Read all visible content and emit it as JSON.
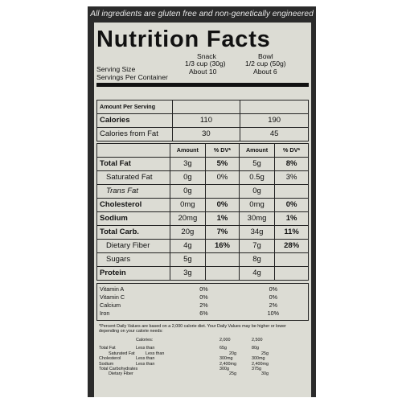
{
  "banner": "All ingredients are gluten free and non-genetically engineered",
  "title": "Nutrition Facts",
  "serving": {
    "snack_label": "Snack",
    "bowl_label": "Bowl",
    "size_label": "Serving Size",
    "per_label": "Servings Per Container",
    "snack_size": "1/3 cup (30g)",
    "bowl_size": "1/2 cup (50g)",
    "snack_per": "About 10",
    "bowl_per": "About 6"
  },
  "amount_per_serving": "Amount Per Serving",
  "calories": {
    "label": "Calories",
    "snack": "110",
    "bowl": "190"
  },
  "calories_fat": {
    "label": "Calories from Fat",
    "snack": "30",
    "bowl": "45"
  },
  "col_headers": {
    "amount": "Amount",
    "dv": "% DV*",
    "amount2": "Amount",
    "dv2": "% DV*"
  },
  "nutrients": [
    {
      "label": "Total Fat",
      "a1": "3g",
      "d1": "5%",
      "a2": "5g",
      "d2": "8%"
    },
    {
      "label": "Saturated Fat",
      "a1": "0g",
      "d1": "0%",
      "a2": "0.5g",
      "d2": "3%"
    },
    {
      "label": "Trans Fat",
      "a1": "0g",
      "d1": "",
      "a2": "0g",
      "d2": ""
    },
    {
      "label": "Cholesterol",
      "a1": "0mg",
      "d1": "0%",
      "a2": "0mg",
      "d2": "0%"
    },
    {
      "label": "Sodium",
      "a1": "20mg",
      "d1": "1%",
      "a2": "30mg",
      "d2": "1%"
    },
    {
      "label": "Total Carb.",
      "a1": "20g",
      "d1": "7%",
      "a2": "34g",
      "d2": "11%"
    },
    {
      "label": "Dietary Fiber",
      "a1": "4g",
      "d1": "16%",
      "a2": "7g",
      "d2": "28%"
    },
    {
      "label": "Sugars",
      "a1": "5g",
      "d1": "",
      "a2": "8g",
      "d2": ""
    },
    {
      "label": "Protein",
      "a1": "3g",
      "d1": "",
      "a2": "4g",
      "d2": ""
    }
  ],
  "vitamins": [
    {
      "label": "Vitamin A",
      "s": "0%",
      "b": "0%"
    },
    {
      "label": "Vitamin C",
      "s": "0%",
      "b": "0%"
    },
    {
      "label": "Calcium",
      "s": "2%",
      "b": "2%"
    },
    {
      "label": "Iron",
      "s": "6%",
      "b": "10%"
    }
  ],
  "footnote": "*Percent Daily Values are based on a 2,000 calorie diet. Your Daily Values may be higher or lower depending on your calorie needs:",
  "dv_table": {
    "header": {
      "calories": "Calories:",
      "c2000": "2,000",
      "c2500": "2,500"
    },
    "rows": [
      {
        "label": "Total Fat",
        "lt": "Less than",
        "v1": "65g",
        "v2": "80g"
      },
      {
        "label": "Saturated Fat",
        "lt": "Less than",
        "v1": "20g",
        "v2": "25g"
      },
      {
        "label": "Cholesterol",
        "lt": "Less than",
        "v1": "300mg",
        "v2": "300mg"
      },
      {
        "label": "Sodium",
        "lt": "Less than",
        "v1": "2,400mg",
        "v2": "2,400mg"
      },
      {
        "label": "Total Carbohydrates",
        "lt": "",
        "v1": "300g",
        "v2": "375g"
      },
      {
        "label": "Dietary Fiber",
        "lt": "",
        "v1": "25g",
        "v2": "30g"
      }
    ]
  }
}
